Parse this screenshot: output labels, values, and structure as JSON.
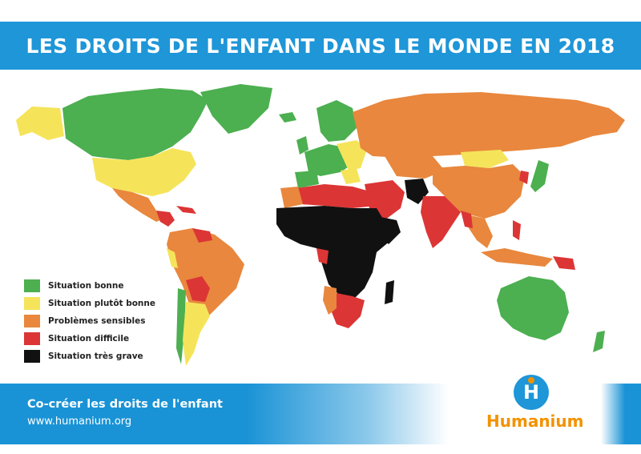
{
  "title": "LES DROITS DE L'ENFANT DANS LE MONDE EN 2018",
  "legend": [
    {
      "label": "Situation bonne",
      "color": "#4caf50"
    },
    {
      "label": "Situation plutôt bonne",
      "color": "#f5e45a"
    },
    {
      "label": "Problèmes sensibles",
      "color": "#e8873d"
    },
    {
      "label": "Situation difficile",
      "color": "#dc3535"
    },
    {
      "label": "Situation très grave",
      "color": "#111111"
    }
  ],
  "footer": {
    "tagline": "Co-créer les droits de l'enfant",
    "website": "www.humanium.org"
  },
  "logo": {
    "letter": "H",
    "name": "Humanium",
    "circle_color": "#1e96d8",
    "text_color": "#f39200"
  }
}
